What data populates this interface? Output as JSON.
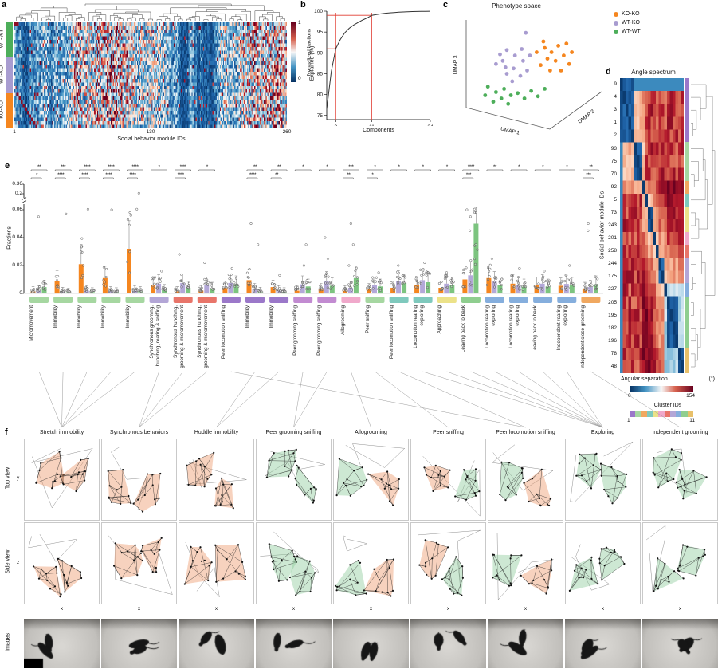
{
  "figure": {
    "panel_labels": {
      "a": "a",
      "b": "b",
      "c": "c",
      "d": "d",
      "e": "e",
      "f": "f"
    }
  },
  "panel_a": {
    "rows": 30,
    "cols": 260,
    "row_groups": [
      {
        "label": "WT-WT",
        "color": "#4DAE5A"
      },
      {
        "label": "WT-KO",
        "color": "#A89CD0"
      },
      {
        "label": "KO-KO",
        "color": "#F5861F"
      }
    ],
    "colorbar": {
      "label": "Normalized fractions",
      "tick_top": "1",
      "tick_bottom": "0"
    },
    "xlabel": "Social behavior module IDs",
    "xticks": [
      "1",
      "130",
      "260"
    ]
  },
  "panel_b": {
    "ylabel": "Explained (%)",
    "xlabel": "Components",
    "yticks": [
      "100",
      "95",
      "90",
      "85",
      "80",
      "75"
    ],
    "xticks": [
      "3",
      "11",
      "24"
    ],
    "chart_data": {
      "type": "line",
      "x": [
        1,
        2,
        3,
        4,
        5,
        6,
        7,
        8,
        9,
        10,
        11,
        12,
        13,
        14,
        15,
        16,
        17,
        18,
        19,
        20,
        21,
        22,
        23,
        24
      ],
      "y": [
        76.5,
        85.5,
        91,
        93.2,
        94.8,
        95.9,
        96.7,
        97.3,
        97.9,
        98.4,
        99,
        99.2,
        99.35,
        99.5,
        99.6,
        99.68,
        99.75,
        99.8,
        99.85,
        99.9,
        99.93,
        99.95,
        99.97,
        99.99
      ],
      "xlim": [
        1,
        24
      ],
      "ylim": [
        74,
        101
      ],
      "guides": {
        "components": [
          3,
          11
        ],
        "explained": [
          91,
          99
        ]
      }
    }
  },
  "panel_c": {
    "title": "Phenotype space",
    "axis_labels": [
      "UMAP 1",
      "UMAP 2",
      "UMAP 3"
    ],
    "legend": [
      {
        "label": "KO-KO",
        "color": "#F5861F"
      },
      {
        "label": "WT-KO",
        "color": "#A89CD0"
      },
      {
        "label": "WT-WT",
        "color": "#4DAE5A"
      }
    ],
    "chart_data": {
      "type": "scatter",
      "series": [
        {
          "name": "KO-KO",
          "color": "#F5861F",
          "points": [
            [
              0.52,
              0.3
            ],
            [
              0.58,
              0.26
            ],
            [
              0.63,
              0.3
            ],
            [
              0.68,
              0.24
            ],
            [
              0.6,
              0.36
            ],
            [
              0.55,
              0.42
            ],
            [
              0.66,
              0.38
            ],
            [
              0.72,
              0.33
            ],
            [
              0.76,
              0.41
            ],
            [
              0.62,
              0.47
            ],
            [
              0.7,
              0.47
            ],
            [
              0.78,
              0.3
            ],
            [
              0.57,
              0.2
            ],
            [
              0.74,
              0.22
            ]
          ]
        },
        {
          "name": "WT-KO",
          "color": "#A89CD0",
          "points": [
            [
              0.3,
              0.28
            ],
            [
              0.36,
              0.33
            ],
            [
              0.27,
              0.38
            ],
            [
              0.42,
              0.38
            ],
            [
              0.35,
              0.45
            ],
            [
              0.3,
              0.5
            ],
            [
              0.4,
              0.52
            ],
            [
              0.25,
              0.32
            ],
            [
              0.45,
              0.47
            ],
            [
              0.34,
              0.57
            ],
            [
              0.41,
              0.27
            ],
            [
              0.29,
              0.44
            ],
            [
              0.22,
              0.41
            ],
            [
              0.47,
              0.33
            ],
            [
              0.44,
              0.12
            ]
          ]
        },
        {
          "name": "WT-WT",
          "color": "#4DAE5A",
          "points": [
            [
              0.16,
              0.62
            ],
            [
              0.22,
              0.67
            ],
            [
              0.28,
              0.64
            ],
            [
              0.33,
              0.7
            ],
            [
              0.26,
              0.73
            ],
            [
              0.2,
              0.76
            ],
            [
              0.38,
              0.68
            ],
            [
              0.43,
              0.73
            ],
            [
              0.31,
              0.78
            ],
            [
              0.48,
              0.66
            ],
            [
              0.53,
              0.71
            ],
            [
              0.14,
              0.7
            ],
            [
              0.58,
              0.64
            ]
          ]
        }
      ]
    }
  },
  "panel_d": {
    "title": "Angle spectrum",
    "ylabel": "Social behavior module IDs",
    "row_labels": [
      "9",
      "4",
      "3",
      "1",
      "2",
      "93",
      "75",
      "70",
      "92",
      "5",
      "73",
      "243",
      "201",
      "258",
      "244",
      "175",
      "227",
      "205",
      "195",
      "182",
      "196",
      "78",
      "48"
    ],
    "colorbar": {
      "label": "Angular separation",
      "unit": "(°)",
      "tick_left": "0",
      "tick_right": "154"
    },
    "clusters": {
      "label": "Cluster IDs",
      "tick_left": "1",
      "tick_right": "11",
      "sizes": [
        5,
        3,
        1,
        1,
        2,
        1,
        1,
        2,
        1,
        4,
        2
      ],
      "colors": [
        "#9B78C9",
        "#A6D7A1",
        "#F0A860",
        "#7FC9BD",
        "#ECE289",
        "#F0A9CB",
        "#E8756A",
        "#B3A6D6",
        "#85AEDD",
        "#8FCE8F",
        "#E8C06A"
      ]
    }
  },
  "panel_e": {
    "ylabel": "Fractions",
    "yticks": [
      {
        "label": "0",
        "v": 0
      },
      {
        "label": "0.02",
        "v": 0.02
      },
      {
        "label": "0.04",
        "v": 0.04
      },
      {
        "label": "0.06",
        "v": 0.06
      },
      {
        "label": "0.2",
        "v": 0.2
      },
      {
        "label": "0.36",
        "v": 0.36
      }
    ],
    "series_names": [
      "KO-KO",
      "WT-KO",
      "WT-WT"
    ],
    "series_colors": [
      "#F5861F",
      "#B3A8D8",
      "#7CC47F"
    ],
    "groups": [
      {
        "label": "Micromovement",
        "color": "#A6D7A1",
        "sig": [
          "**",
          "*"
        ],
        "values": [
          0.0015,
          0.002,
          0.0045
        ],
        "outliers": [
          0.055
        ]
      },
      {
        "label": "Immobility",
        "color": "#A6D7A1",
        "sig": [
          "***",
          "****"
        ],
        "values": [
          0.009,
          0.0012,
          0.0008
        ],
        "outliers": [
          0.057
        ]
      },
      {
        "label": "Immobility",
        "color": "#A6D7A1",
        "sig": [
          "****",
          "****"
        ],
        "values": [
          0.021,
          0.002,
          0.001
        ],
        "outliers": [
          0.065,
          0.02
        ]
      },
      {
        "label": "Immobility",
        "color": "#A6D7A1",
        "sig": [
          "****",
          "****"
        ],
        "values": [
          0.011,
          0.0015,
          0.001
        ],
        "outliers": [
          0.06
        ]
      },
      {
        "label": "Immobility",
        "color": "#A6D7A1",
        "sig": [
          "****",
          "****"
        ],
        "values": [
          0.032,
          0.002,
          0.0015
        ],
        "outliers": [
          0.21,
          0.065
        ]
      },
      {
        "label": "Synchronous grooming, hunching, rearing & sniffing",
        "color": "#B3A6D6",
        "sig": [
          "*",
          ""
        ],
        "values": [
          0.006,
          0.007,
          0.0025
        ],
        "outliers": [
          0.016
        ]
      },
      {
        "label": "Synchronous hunching, grooming & micromovement",
        "color": "#E8756A",
        "sig": [
          "****",
          "****"
        ],
        "values": [
          0.0015,
          0.0075,
          0.004
        ],
        "outliers": [
          0.028
        ]
      },
      {
        "label": "Synchronous hunching, grooming & micromovement",
        "color": "#E8756A",
        "sig": [
          "*",
          ""
        ],
        "values": [
          0.002,
          0.006,
          0.0035
        ],
        "outliers": [
          0.022
        ]
      },
      {
        "label": "Peer locomotion sniffing",
        "color": "#9B78C9",
        "sig": [
          "",
          ""
        ],
        "values": [
          0.004,
          0.0075,
          0.0065
        ],
        "outliers": [
          0.018
        ]
      },
      {
        "label": "Immobility",
        "color": "#9B78C9",
        "sig": [
          "**",
          "****"
        ],
        "values": [
          0.0095,
          0.003,
          0.0012
        ],
        "outliers": [
          0.05,
          0.035
        ]
      },
      {
        "label": "Immobility",
        "color": "#9B78C9",
        "sig": [
          "**",
          "**"
        ],
        "values": [
          0.0045,
          0.002,
          0.001
        ],
        "outliers": [
          0.013
        ]
      },
      {
        "label": "Peer grooming sniffing",
        "color": "#C28BD1",
        "sig": [
          "*",
          ""
        ],
        "values": [
          0.002,
          0.0065,
          0.005
        ],
        "outliers": [
          0.035,
          0.02
        ]
      },
      {
        "label": "Peer grooming sniffing",
        "color": "#C28BD1",
        "sig": [
          "*",
          ""
        ],
        "values": [
          0.003,
          0.0085,
          0.0055
        ],
        "outliers": [
          0.04,
          0.025
        ]
      },
      {
        "label": "Allogrooming",
        "color": "#F0A9CB",
        "sig": [
          "***",
          "**"
        ],
        "values": [
          0.002,
          0.004,
          0.011
        ],
        "outliers": [
          0.05,
          0.035,
          0.02
        ]
      },
      {
        "label": "Peer sniffing",
        "color": "#A6D7A1",
        "sig": [
          "*",
          "*"
        ],
        "values": [
          0.003,
          0.006,
          0.005
        ],
        "outliers": [
          0.015
        ]
      },
      {
        "label": "Peer locomotion sniffing",
        "color": "#7FC9BD",
        "sig": [
          "*",
          ""
        ],
        "values": [
          0.004,
          0.009,
          0.0075
        ],
        "outliers": [
          0.02
        ]
      },
      {
        "label": "Locomotion rearing exploring",
        "color": "#7FC9BD",
        "sig": [
          "*",
          ""
        ],
        "values": [
          0.006,
          0.0095,
          0.008
        ],
        "outliers": [
          0.022
        ]
      },
      {
        "label": "Approaching",
        "color": "#ECE289",
        "sig": [
          "*",
          ""
        ],
        "values": [
          0.004,
          0.007,
          0.006
        ],
        "outliers": [
          0.015
        ]
      },
      {
        "label": "Leaving back to back",
        "color": "#8FCE8F",
        "sig": [
          "****",
          "***"
        ],
        "values": [
          0.01,
          0.013,
          0.05
        ],
        "outliers": [
          0.065,
          0.06,
          0.055,
          0.045
        ]
      },
      {
        "label": "Locomotion rearing exploring",
        "color": "#85AEDD",
        "sig": [
          "**",
          ""
        ],
        "values": [
          0.011,
          0.0085,
          0.006
        ],
        "outliers": [
          0.025
        ]
      },
      {
        "label": "Locomotion rearing exploring",
        "color": "#85AEDD",
        "sig": [
          "*",
          ""
        ],
        "values": [
          0.007,
          0.006,
          0.005
        ],
        "outliers": [
          0.018
        ]
      },
      {
        "label": "Leaving back to back",
        "color": "#85AEDD",
        "sig": [
          "*",
          ""
        ],
        "values": [
          0.006,
          0.007,
          0.005
        ],
        "outliers": [
          0.016
        ]
      },
      {
        "label": "Independent rearing exploring",
        "color": "#85AEDD",
        "sig": [
          "*",
          ""
        ],
        "values": [
          0.0055,
          0.0068,
          0.0058
        ],
        "outliers": [
          0.02
        ]
      },
      {
        "label": "Independent close grooming",
        "color": "#F0A860",
        "sig": [
          "**",
          "***"
        ],
        "values": [
          0.0035,
          0.0045,
          0.0065
        ],
        "outliers": [
          0.05,
          0.045
        ]
      }
    ]
  },
  "panel_f": {
    "row_labels": [
      "Top view",
      "Side view",
      "Images"
    ],
    "axis_y": "y",
    "axis_z": "z",
    "axis_x": "x",
    "columns": [
      {
        "title": "Stretch immobility",
        "tints": [
          "orange",
          "orange"
        ]
      },
      {
        "title": "Synchronous behaviors",
        "tints": [
          "orange",
          "orange"
        ]
      },
      {
        "title": "Huddle immobility",
        "tints": [
          "orange",
          "orange"
        ]
      },
      {
        "title": "Peer grooming sniffing",
        "tints": [
          "green",
          "green"
        ]
      },
      {
        "title": "Allogrooming",
        "tints": [
          "green",
          "orange"
        ]
      },
      {
        "title": "Peer sniffing",
        "tints": [
          "orange",
          "green"
        ]
      },
      {
        "title": "Peer locomotion sniffing",
        "tints": [
          "green",
          "orange"
        ]
      },
      {
        "title": "Exploring",
        "tints": [
          "green",
          "green"
        ]
      },
      {
        "title": "Independent grooming",
        "tints": [
          "green",
          "green"
        ]
      }
    ],
    "links": [
      {
        "groups": [
          1,
          2,
          3,
          4,
          5
        ],
        "col": 1
      },
      {
        "groups": [
          6,
          7,
          8
        ],
        "col": 2
      },
      {
        "groups": [
          10,
          11
        ],
        "col": 3
      },
      {
        "groups": [
          12,
          13
        ],
        "col": 4
      },
      {
        "groups": [
          14
        ],
        "col": 5
      },
      {
        "groups": [
          15
        ],
        "col": 6
      },
      {
        "groups": [
          9,
          16
        ],
        "col": 7
      },
      {
        "groups": [
          17,
          18,
          19,
          20,
          21,
          22,
          23
        ],
        "col": 8
      },
      {
        "groups": [
          24
        ],
        "col": 9
      }
    ]
  }
}
